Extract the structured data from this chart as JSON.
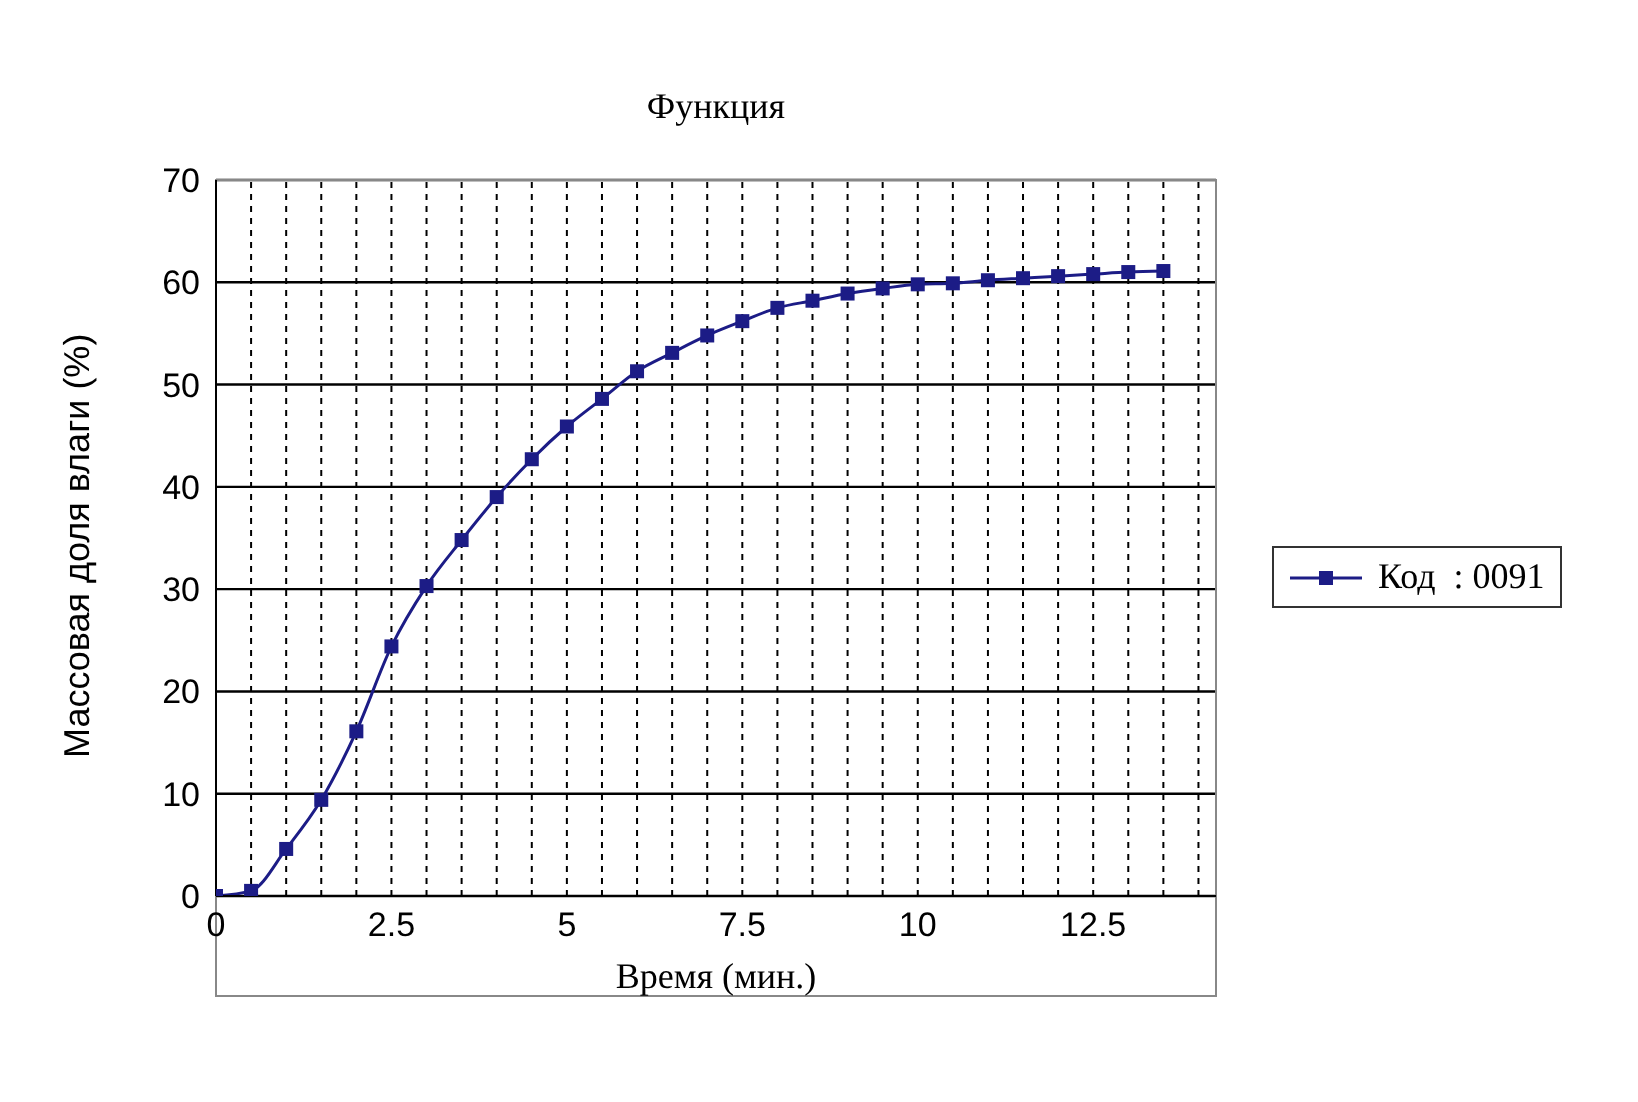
{
  "chart_data": {
    "type": "line",
    "title": "Функция",
    "xlabel": "Время (мин.)",
    "ylabel": "Массовая доля влаги (%)",
    "x": [
      0,
      0.5,
      1,
      1.5,
      2,
      2.5,
      3,
      3.5,
      4,
      4.5,
      5,
      5.5,
      6,
      6.5,
      7,
      7.5,
      8,
      8.5,
      9,
      9.5,
      10,
      10.5,
      11,
      11.5,
      12,
      12.5,
      13,
      13.5
    ],
    "series": [
      {
        "name": "Код  : 0091",
        "color": "#1c1c86",
        "values": [
          0,
          0.5,
          4.6,
          9.4,
          16.1,
          24.4,
          30.3,
          34.8,
          39.0,
          42.7,
          45.9,
          48.6,
          51.3,
          53.1,
          54.8,
          56.2,
          57.5,
          58.2,
          58.9,
          59.4,
          59.8,
          59.9,
          60.2,
          60.4,
          60.6,
          60.8,
          61.0,
          61.1
        ]
      }
    ],
    "xlim": [
      0,
      14.25
    ],
    "xticks": [
      0,
      {
        "value": 0.5,
        "label": null
      },
      {
        "value": 1,
        "label": null
      },
      {
        "value": 1.5,
        "label": null
      },
      {
        "value": 2,
        "label": null
      },
      2.5,
      {
        "value": 3,
        "label": null
      },
      {
        "value": 3.5,
        "label": null
      },
      {
        "value": 4,
        "label": null
      },
      {
        "value": 4.5,
        "label": null
      },
      5,
      {
        "value": 5.5,
        "label": null
      },
      {
        "value": 6,
        "label": null
      },
      {
        "value": 6.5,
        "label": null
      },
      {
        "value": 7,
        "label": null
      },
      7.5,
      {
        "value": 8,
        "label": null
      },
      {
        "value": 8.5,
        "label": null
      },
      {
        "value": 9,
        "label": null
      },
      {
        "value": 9.5,
        "label": null
      },
      10,
      {
        "value": 10.5,
        "label": null
      },
      {
        "value": 11,
        "label": null
      },
      {
        "value": 11.5,
        "label": null
      },
      {
        "value": 12,
        "label": null
      },
      12.5,
      {
        "value": 13,
        "label": null
      },
      {
        "value": 13.5,
        "label": null
      },
      {
        "value": 14,
        "label": null
      }
    ],
    "ylim": [
      0,
      70
    ],
    "yticks": [
      0,
      10,
      20,
      30,
      40,
      50,
      60,
      70
    ],
    "grid": true,
    "legend": "right",
    "marker": "square",
    "line_style": "solid"
  }
}
